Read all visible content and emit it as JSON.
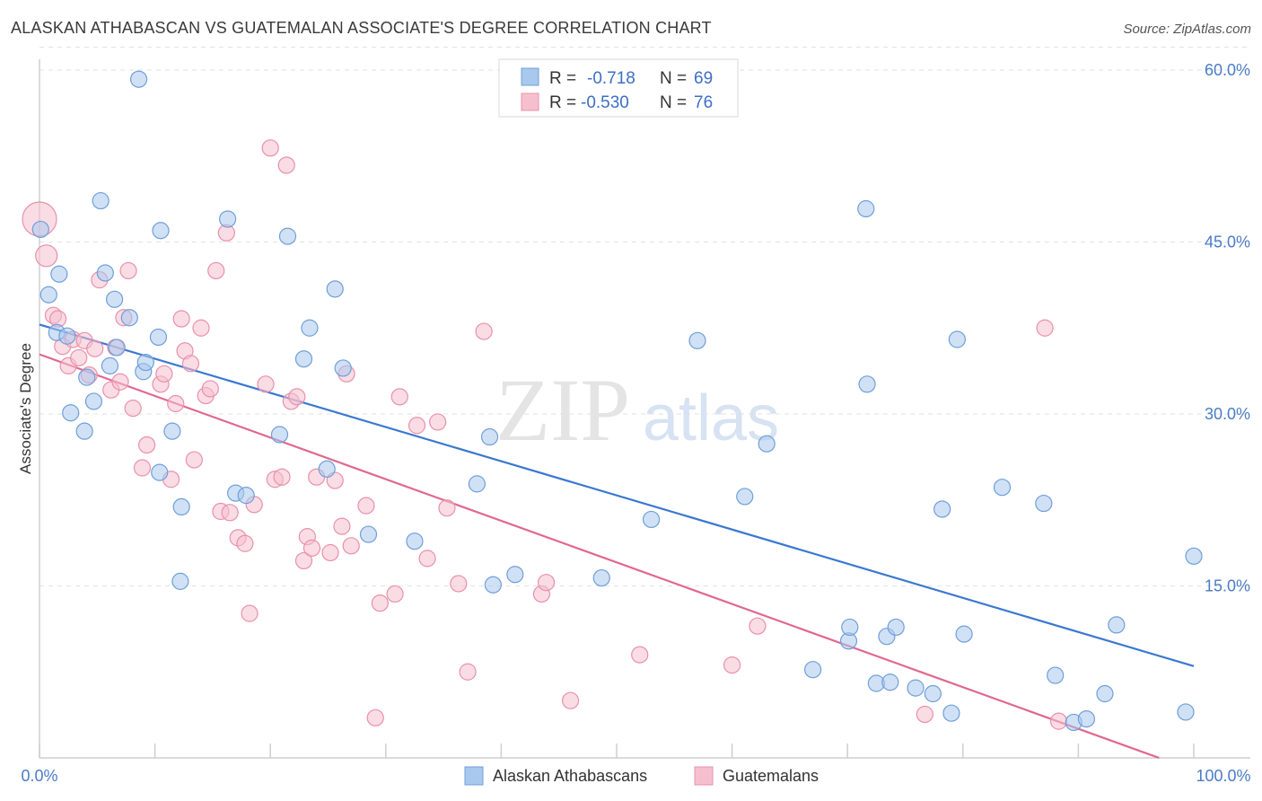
{
  "title": "ALASKAN ATHABASCAN VS GUATEMALAN ASSOCIATE'S DEGREE CORRELATION CHART",
  "source": "Source: ZipAtlas.com",
  "watermark": {
    "part1": "ZIP",
    "part2": "atlas"
  },
  "legend_top": {
    "rows": [
      {
        "r_label": "R =",
        "r_value": "-0.718",
        "n_label": "N =",
        "n_value": "69"
      },
      {
        "r_label": "R =",
        "r_value": "-0.530",
        "n_label": "N =",
        "n_value": "76"
      }
    ]
  },
  "legend_bottom": {
    "items": [
      "Alaskan Athabascans",
      "Guatemalans"
    ]
  },
  "colors": {
    "blue_fill": "#a9c8ee",
    "blue_stroke": "#6f9fd8",
    "blue_line": "#3a78d0",
    "pink_fill": "#f6bfd0",
    "pink_stroke": "#e990ab",
    "pink_line": "#e0678f",
    "tick_color": "#4a7cc6",
    "grid": "#e2e2e2"
  },
  "chart_data": {
    "type": "scatter",
    "title": "ALASKAN ATHABASCAN VS GUATEMALAN ASSOCIATE'S DEGREE CORRELATION CHART",
    "xlabel": "",
    "ylabel": "Associate's Degree",
    "xlim": [
      0,
      100
    ],
    "ylim": [
      0,
      60
    ],
    "x_ticks": [
      "0.0%",
      "100.0%"
    ],
    "y_ticks": [
      {
        "value": 15,
        "label": "15.0%"
      },
      {
        "value": 30,
        "label": "30.0%"
      },
      {
        "value": 45,
        "label": "45.0%"
      },
      {
        "value": 60,
        "label": "60.0%"
      }
    ],
    "grid": true,
    "legend_position": "top-center",
    "series": [
      {
        "name": "Alaskan Athabascans",
        "r": -0.718,
        "n": 69,
        "trend": {
          "x": [
            0,
            100
          ],
          "y": [
            37.8,
            8.0
          ]
        },
        "points": [
          [
            0.1,
            46.1
          ],
          [
            0.8,
            40.4
          ],
          [
            1.5,
            37.1
          ],
          [
            1.7,
            42.2
          ],
          [
            2.4,
            36.8
          ],
          [
            2.7,
            30.1
          ],
          [
            3.9,
            28.5
          ],
          [
            4.1,
            33.2
          ],
          [
            4.7,
            31.1
          ],
          [
            5.3,
            48.6
          ],
          [
            5.7,
            42.3
          ],
          [
            6.1,
            34.2
          ],
          [
            6.5,
            40.0
          ],
          [
            6.7,
            35.8
          ],
          [
            7.8,
            38.4
          ],
          [
            8.6,
            59.2
          ],
          [
            9.0,
            33.7
          ],
          [
            9.2,
            34.5
          ],
          [
            10.3,
            36.7
          ],
          [
            10.4,
            24.9
          ],
          [
            10.5,
            46.0
          ],
          [
            11.5,
            28.5
          ],
          [
            12.2,
            15.4
          ],
          [
            12.3,
            21.9
          ],
          [
            16.3,
            47.0
          ],
          [
            17.0,
            23.1
          ],
          [
            17.9,
            22.9
          ],
          [
            20.8,
            28.2
          ],
          [
            21.5,
            45.5
          ],
          [
            22.9,
            34.8
          ],
          [
            23.4,
            37.5
          ],
          [
            24.9,
            25.2
          ],
          [
            25.6,
            40.9
          ],
          [
            26.3,
            34.0
          ],
          [
            28.5,
            19.5
          ],
          [
            32.5,
            18.9
          ],
          [
            37.9,
            23.9
          ],
          [
            39.0,
            28.0
          ],
          [
            39.3,
            15.1
          ],
          [
            41.2,
            16.0
          ],
          [
            48.7,
            15.7
          ],
          [
            53.0,
            20.8
          ],
          [
            57.0,
            36.4
          ],
          [
            61.1,
            22.8
          ],
          [
            63.0,
            27.4
          ],
          [
            67.0,
            7.7
          ],
          [
            70.1,
            10.2
          ],
          [
            70.2,
            11.4
          ],
          [
            71.6,
            47.9
          ],
          [
            71.7,
            32.6
          ],
          [
            72.5,
            6.5
          ],
          [
            73.4,
            10.6
          ],
          [
            73.7,
            6.6
          ],
          [
            74.2,
            11.4
          ],
          [
            75.9,
            6.1
          ],
          [
            77.4,
            5.6
          ],
          [
            78.2,
            21.7
          ],
          [
            79.0,
            3.9
          ],
          [
            79.5,
            36.5
          ],
          [
            80.1,
            10.8
          ],
          [
            83.4,
            23.6
          ],
          [
            87.0,
            22.2
          ],
          [
            88.0,
            7.2
          ],
          [
            89.6,
            3.1
          ],
          [
            90.7,
            3.4
          ],
          [
            92.3,
            5.6
          ],
          [
            93.3,
            11.6
          ],
          [
            99.3,
            4.0
          ],
          [
            100.0,
            17.6
          ]
        ]
      },
      {
        "name": "Guatemalans",
        "r": -0.53,
        "n": 76,
        "trend": {
          "x": [
            0,
            97
          ],
          "y": [
            35.2,
            0.0
          ]
        },
        "points": [
          [
            0.0,
            47.0
          ],
          [
            0.6,
            43.8
          ],
          [
            1.2,
            38.6
          ],
          [
            1.6,
            38.3
          ],
          [
            2.0,
            35.9
          ],
          [
            2.5,
            34.2
          ],
          [
            2.9,
            36.5
          ],
          [
            3.4,
            34.9
          ],
          [
            3.9,
            36.4
          ],
          [
            4.3,
            33.4
          ],
          [
            4.8,
            35.7
          ],
          [
            5.2,
            41.7
          ],
          [
            6.2,
            32.1
          ],
          [
            6.6,
            35.8
          ],
          [
            7.0,
            32.8
          ],
          [
            7.3,
            38.4
          ],
          [
            7.7,
            42.5
          ],
          [
            8.1,
            30.5
          ],
          [
            8.9,
            25.3
          ],
          [
            9.3,
            27.3
          ],
          [
            10.5,
            32.6
          ],
          [
            10.8,
            33.5
          ],
          [
            11.4,
            24.3
          ],
          [
            11.8,
            30.9
          ],
          [
            12.3,
            38.3
          ],
          [
            12.6,
            35.5
          ],
          [
            13.1,
            34.4
          ],
          [
            13.4,
            26.0
          ],
          [
            14.0,
            37.5
          ],
          [
            14.4,
            31.6
          ],
          [
            14.8,
            32.2
          ],
          [
            15.3,
            42.5
          ],
          [
            15.7,
            21.5
          ],
          [
            16.2,
            45.8
          ],
          [
            16.5,
            21.4
          ],
          [
            17.2,
            19.2
          ],
          [
            17.8,
            18.7
          ],
          [
            18.2,
            12.6
          ],
          [
            18.6,
            22.1
          ],
          [
            19.6,
            32.6
          ],
          [
            20.0,
            53.2
          ],
          [
            20.4,
            24.3
          ],
          [
            21.0,
            24.5
          ],
          [
            21.4,
            51.7
          ],
          [
            21.8,
            31.1
          ],
          [
            22.3,
            31.5
          ],
          [
            22.9,
            17.2
          ],
          [
            23.2,
            19.3
          ],
          [
            23.6,
            18.3
          ],
          [
            24.0,
            24.5
          ],
          [
            25.2,
            17.9
          ],
          [
            25.6,
            24.2
          ],
          [
            26.2,
            20.2
          ],
          [
            26.6,
            33.5
          ],
          [
            27.0,
            18.5
          ],
          [
            28.3,
            22.0
          ],
          [
            29.1,
            3.5
          ],
          [
            29.5,
            13.5
          ],
          [
            30.8,
            14.3
          ],
          [
            31.2,
            31.5
          ],
          [
            32.7,
            29.0
          ],
          [
            33.6,
            17.4
          ],
          [
            34.5,
            29.3
          ],
          [
            35.3,
            21.8
          ],
          [
            36.3,
            15.2
          ],
          [
            37.1,
            7.5
          ],
          [
            38.5,
            37.2
          ],
          [
            43.5,
            14.3
          ],
          [
            43.9,
            15.3
          ],
          [
            46.0,
            5.0
          ],
          [
            52.0,
            9.0
          ],
          [
            60.0,
            8.1
          ],
          [
            62.2,
            11.5
          ],
          [
            76.7,
            3.8
          ],
          [
            87.1,
            37.5
          ],
          [
            88.3,
            3.2
          ]
        ]
      }
    ]
  }
}
